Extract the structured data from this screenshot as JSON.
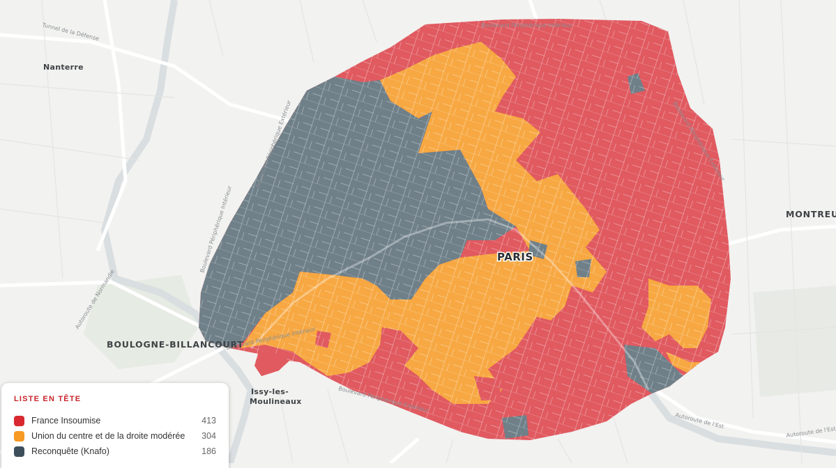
{
  "map": {
    "city_label": "PARIS",
    "places": {
      "nanterre": "Nanterre",
      "montreuil": "MONTREUIL",
      "boulogne": "BOULOGNE-BILLANCOURT",
      "issy_line1": "Issy-les-",
      "issy_line2": "Moulineaux"
    },
    "roads": {
      "tunnel": "Tunnel de la Défense",
      "periph_int_north": "Boulevard Périphérique Intérieur",
      "periph_ext_west": "Boulevard Périphérique Extérieur",
      "periph_int_west": "Boulevard Périphérique Intérieur",
      "periph_ext_east": "Boulevard Périphérique Extérieur",
      "periph_south": "Boulevard Périphérique Extérieur",
      "periph_bb": "Boulevard Périphérique Intérieur",
      "a13": "Autoroute de Normandie",
      "a4_1": "Autoroute de l'Est",
      "a4_2": "Autoroute de l'Est"
    }
  },
  "legend": {
    "title": "LISTE EN TÊTE",
    "items": [
      {
        "label": "France Insoumise",
        "count": "413",
        "color": "#d9282f"
      },
      {
        "label": "Union du centre et de la droite modérée",
        "count": "304",
        "color": "#f59a23"
      },
      {
        "label": "Reconquête (Knafo)",
        "count": "186",
        "color": "#3e4f5c"
      }
    ]
  },
  "colors": {
    "fi_fill": "#e05a60",
    "ucdm_fill": "#f7a842",
    "rec_fill": "#6f8089",
    "background": "#f2f2f0",
    "road": "#ffffff"
  }
}
